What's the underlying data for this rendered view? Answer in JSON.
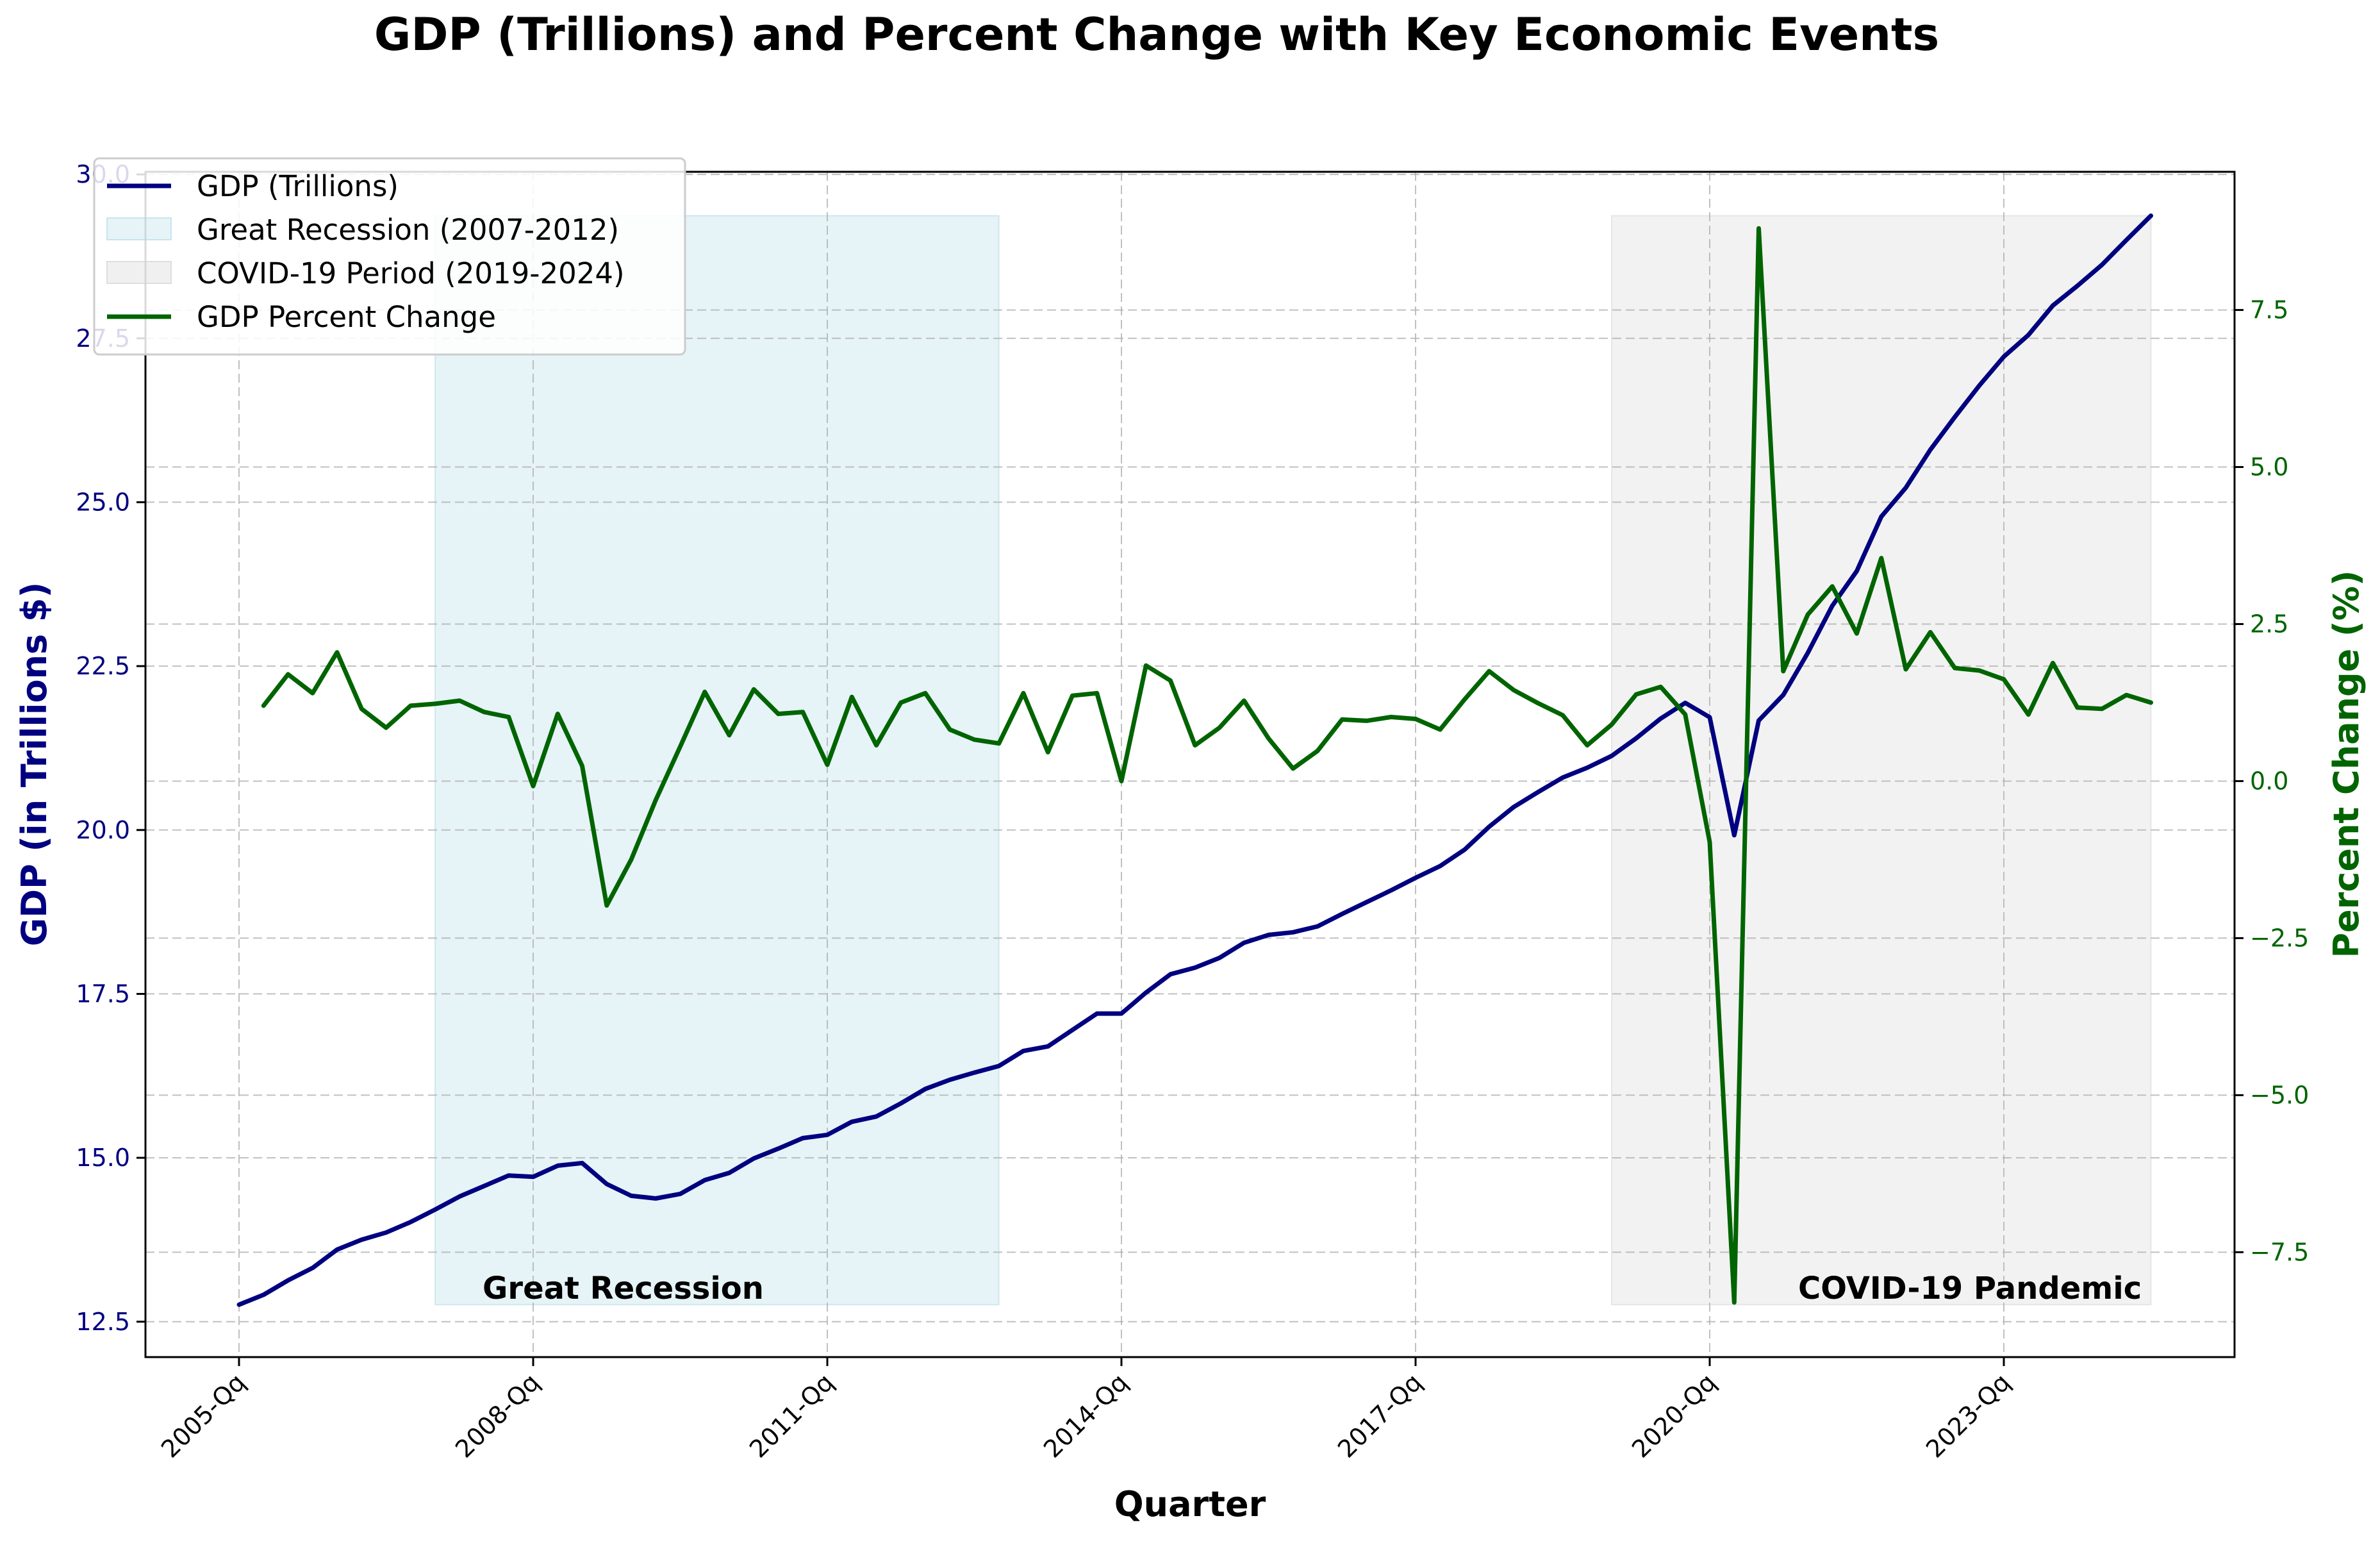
{
  "chart_data": {
    "type": "line",
    "title": "GDP (Trillions) and Percent Change with Key Economic Events",
    "xlabel": "Quarter",
    "ylabel_left": "GDP (in Trillions $)",
    "ylabel_right": "Percent Change (%)",
    "x_tick_labels": [
      "2005-Qq",
      "2008-Qq",
      "2011-Qq",
      "2014-Qq",
      "2017-Qq",
      "2020-Qq",
      "2023-Qq"
    ],
    "y_left_ticks": [
      "12.5",
      "15.0",
      "17.5",
      "20.0",
      "22.5",
      "25.0",
      "27.5",
      "30.0"
    ],
    "y_right_ticks": [
      "−7.5",
      "−5.0",
      "−2.5",
      "0.0",
      "2.5",
      "5.0",
      "7.5"
    ],
    "ylim_left": [
      11.96,
      30.04
    ],
    "ylim_right": [
      -9.17,
      9.7
    ],
    "grid": true,
    "legend_position": "upper-left",
    "legend": [
      "GDP (Trillions)",
      "Great Recession (2007-2012)",
      "COVID-19 Period (2019-2024)",
      "GDP Percent Change"
    ],
    "annotations": [
      "Great Recession",
      "COVID-19 Pandemic"
    ],
    "shaded_regions": [
      {
        "label": "Great Recession (2007-2012)",
        "start_index": 8,
        "end_index": 31,
        "color": "#add8e6"
      },
      {
        "label": "COVID-19 Period (2019-2024)",
        "start_index": 56,
        "end_index": 78,
        "color": "#d3d3d3"
      }
    ],
    "series": [
      {
        "name": "GDP (Trillions)",
        "axis": "left",
        "color": "#000080",
        "values": [
          12.76,
          12.91,
          13.13,
          13.32,
          13.6,
          13.75,
          13.86,
          14.02,
          14.21,
          14.41,
          14.57,
          14.73,
          14.71,
          14.88,
          14.92,
          14.6,
          14.42,
          14.38,
          14.45,
          14.66,
          14.77,
          14.99,
          15.14,
          15.3,
          15.35,
          15.55,
          15.63,
          15.83,
          16.05,
          16.19,
          16.3,
          16.4,
          16.63,
          16.7,
          16.95,
          17.2,
          17.2,
          17.52,
          17.8,
          17.9,
          18.05,
          18.28,
          18.4,
          18.44,
          18.53,
          18.72,
          18.9,
          19.08,
          19.27,
          19.45,
          19.7,
          20.05,
          20.35,
          20.58,
          20.8,
          20.95,
          21.13,
          21.4,
          21.7,
          21.94,
          21.72,
          19.92,
          21.67,
          22.06,
          22.7,
          23.42,
          23.95,
          24.78,
          25.22,
          25.8,
          26.3,
          26.78,
          27.22,
          27.55,
          28.0,
          28.3,
          28.62,
          29.0,
          29.37
        ]
      },
      {
        "name": "GDP Percent Change",
        "axis": "right",
        "color": "#006400",
        "start_index": 1,
        "values": [
          1.2,
          1.7,
          1.4,
          2.05,
          1.15,
          0.85,
          1.2,
          1.23,
          1.28,
          1.1,
          1.02,
          -0.08,
          1.07,
          0.24,
          -1.98,
          -1.25,
          -0.3,
          0.55,
          1.42,
          0.73,
          1.46,
          1.07,
          1.1,
          0.26,
          1.34,
          0.57,
          1.25,
          1.4,
          0.82,
          0.66,
          0.6,
          1.4,
          0.46,
          1.36,
          1.4,
          0.0,
          1.84,
          1.6,
          0.57,
          0.85,
          1.28,
          0.68,
          0.2,
          0.48,
          0.98,
          0.96,
          1.02,
          0.99,
          0.82,
          1.3,
          1.75,
          1.45,
          1.24,
          1.05,
          0.57,
          0.9,
          1.38,
          1.5,
          1.06,
          -0.97,
          -8.3,
          8.8,
          1.75,
          2.65,
          3.1,
          2.35,
          3.55,
          1.78,
          2.37,
          1.8,
          1.76,
          1.62,
          1.06,
          1.88,
          1.17,
          1.15,
          1.37,
          1.25
        ]
      }
    ]
  }
}
